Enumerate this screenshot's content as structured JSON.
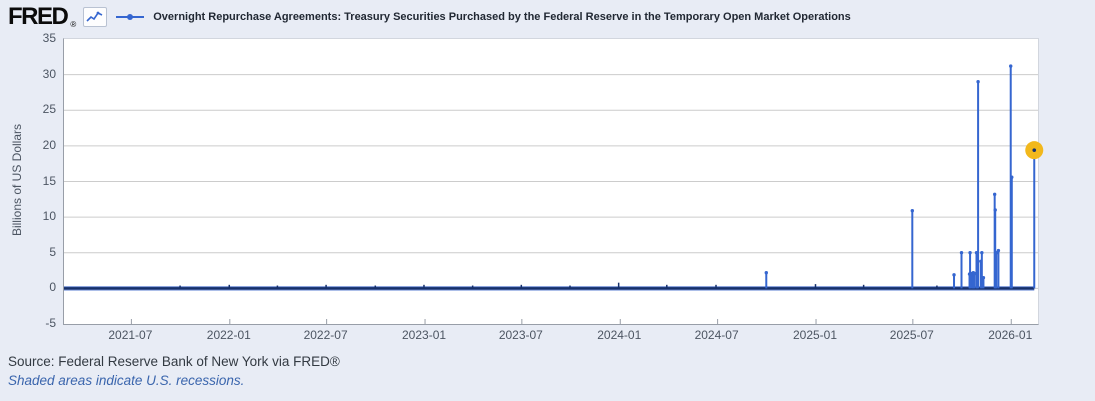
{
  "header": {
    "logo_text": "FRED",
    "registered_mark": "®",
    "series_title": "Overnight Repurchase Agreements: Treasury Securities Purchased by the Federal Reserve in the Temporary Open Market Operations"
  },
  "footer": {
    "source": "Source: Federal Reserve Bank of New York via FRED®",
    "note": "Shaded areas indicate U.S. recessions."
  },
  "colors": {
    "background": "#e8ecf5",
    "plot_background": "#ffffff",
    "gridline": "#cccccc",
    "spike_blue": "#3566d0",
    "baseline_navy": "#16306b",
    "baseline_halo": "#7b97d9",
    "end_marker_yellow": "#f2b81c",
    "axis_text": "#4c5562"
  },
  "chart_data": {
    "type": "line",
    "title": "Overnight Repurchase Agreements: Treasury Securities Purchased by the Federal Reserve in the Temporary Open Market Operations",
    "xlabel": "",
    "ylabel": "Billions of US Dollars",
    "ylim": [
      -5,
      35
    ],
    "ytick_step": 5,
    "ytick_labels": [
      "35",
      "30",
      "25",
      "20",
      "15",
      "10",
      "5",
      "0",
      "-5"
    ],
    "xtick_labels": [
      "2021-07",
      "2022-01",
      "2022-07",
      "2023-01",
      "2023-07",
      "2024-01",
      "2024-07",
      "2025-01",
      "2025-07",
      "2026-01"
    ],
    "x_range": [
      "2021-02-25",
      "2026-02-20"
    ],
    "grid": "horizontal-only",
    "legend_position": "top",
    "baseline_value": 0,
    "series": [
      {
        "name": "Overnight Repurchase Agreements: Treasury Securities Purchased by the Federal Reserve in the Temporary Open Market Operations",
        "units": "Billions of US Dollars",
        "frequency_note": "daily, value 0 on nearly all days with occasional spikes",
        "spikes": [
          {
            "date": "2024-09-30",
            "value": 2.2
          },
          {
            "date": "2025-06-30",
            "value": 10.9
          },
          {
            "date": "2025-09-16",
            "value": 1.9
          },
          {
            "date": "2025-09-30",
            "value": 5.0
          },
          {
            "date": "2025-10-15",
            "value": 2.0
          },
          {
            "date": "2025-10-16",
            "value": 5.0
          },
          {
            "date": "2025-10-17",
            "value": 2.0
          },
          {
            "date": "2025-10-20",
            "value": 2.1
          },
          {
            "date": "2025-10-21",
            "value": 2.0
          },
          {
            "date": "2025-10-22",
            "value": 2.2
          },
          {
            "date": "2025-10-23",
            "value": 2.0
          },
          {
            "date": "2025-10-24",
            "value": 2.1
          },
          {
            "date": "2025-10-28",
            "value": 5.0
          },
          {
            "date": "2025-10-29",
            "value": 2.0
          },
          {
            "date": "2025-10-31",
            "value": 29.0
          },
          {
            "date": "2025-11-05",
            "value": 3.8
          },
          {
            "date": "2025-11-07",
            "value": 5.0
          },
          {
            "date": "2025-11-10",
            "value": 1.5
          },
          {
            "date": "2025-12-01",
            "value": 13.2
          },
          {
            "date": "2025-12-02",
            "value": 11.0
          },
          {
            "date": "2025-12-04",
            "value": 5.0
          },
          {
            "date": "2025-12-08",
            "value": 5.3
          },
          {
            "date": "2025-12-31",
            "value": 31.2
          },
          {
            "date": "2026-01-02",
            "value": 15.6
          },
          {
            "date": "2026-02-13",
            "value": 19.4
          }
        ],
        "minor_blips": [
          {
            "date": "2021-09-30",
            "value": 0.4
          },
          {
            "date": "2021-12-31",
            "value": 0.5
          },
          {
            "date": "2022-03-31",
            "value": 0.4
          },
          {
            "date": "2022-06-30",
            "value": 0.5
          },
          {
            "date": "2022-09-30",
            "value": 0.4
          },
          {
            "date": "2022-12-30",
            "value": 0.5
          },
          {
            "date": "2023-03-31",
            "value": 0.4
          },
          {
            "date": "2023-06-30",
            "value": 0.5
          },
          {
            "date": "2023-09-29",
            "value": 0.4
          },
          {
            "date": "2023-12-29",
            "value": 0.8
          },
          {
            "date": "2024-03-28",
            "value": 0.5
          },
          {
            "date": "2024-06-28",
            "value": 0.5
          },
          {
            "date": "2024-12-31",
            "value": 0.6
          },
          {
            "date": "2025-03-31",
            "value": 0.5
          },
          {
            "date": "2025-08-15",
            "value": 0.4
          }
        ],
        "latest": {
          "date": "2026-02-13",
          "value": 19.4,
          "marker": "yellow-dot"
        }
      }
    ]
  }
}
